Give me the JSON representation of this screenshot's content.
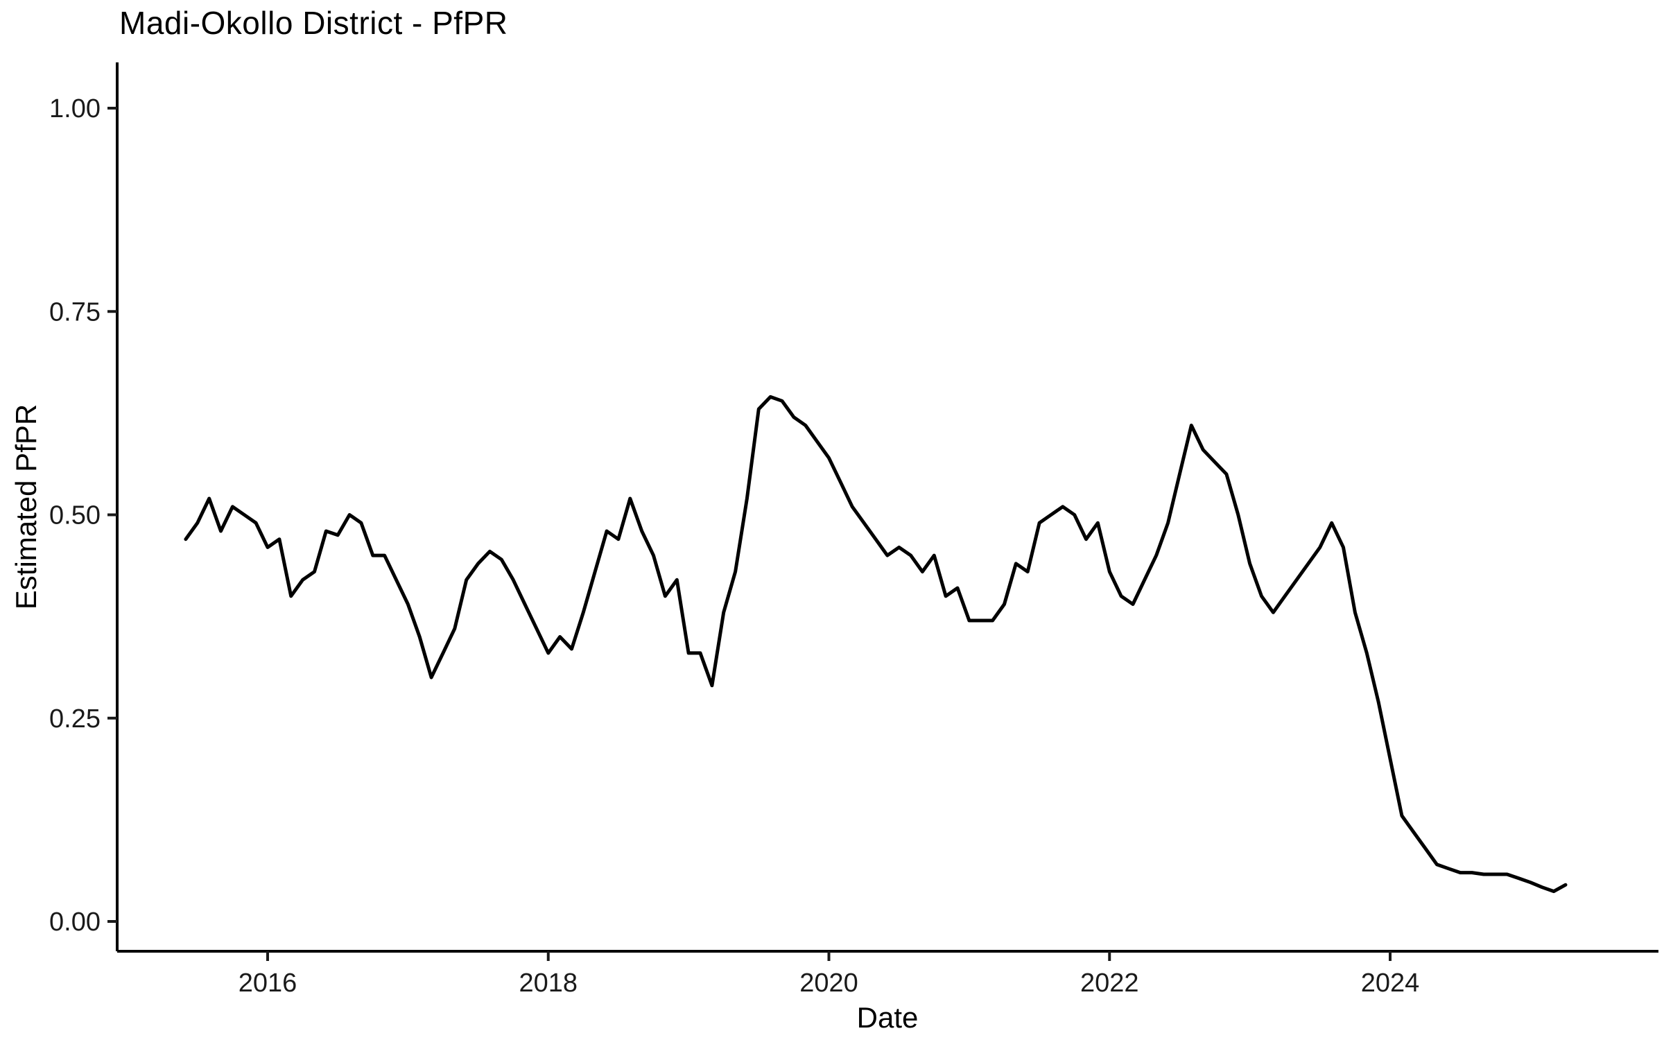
{
  "page": {
    "background": "#FFFFFF"
  },
  "chart_data": {
    "type": "line",
    "title": "Madi-Okollo District - PfPR",
    "xlabel": "Date",
    "ylabel": "Estimated PfPR",
    "series_name": "Estimated PfPR",
    "line_color": "#000000",
    "background": "#FFFFFF",
    "grid": false,
    "legend": "none",
    "x_tick_labels": [
      "2016",
      "2018",
      "2020",
      "2022",
      "2024"
    ],
    "x_tick_years": [
      2016,
      2018,
      2020,
      2022,
      2024
    ],
    "y_tick_labels": [
      "0.00",
      "0.25",
      "0.50",
      "0.75",
      "1.00"
    ],
    "y_tick_values": [
      0.0,
      0.25,
      0.5,
      0.75,
      1.0
    ],
    "y_range": [
      -0.04,
      1.06
    ],
    "x_range_years": [
      2014.93,
      2025.92
    ],
    "frequency": "monthly",
    "start_date": "2015-06",
    "end_date": "2025-04",
    "dates": [
      "2015-06",
      "2015-07",
      "2015-08",
      "2015-09",
      "2015-10",
      "2015-11",
      "2015-12",
      "2016-01",
      "2016-02",
      "2016-03",
      "2016-04",
      "2016-05",
      "2016-06",
      "2016-07",
      "2016-08",
      "2016-09",
      "2016-10",
      "2016-11",
      "2016-12",
      "2017-01",
      "2017-02",
      "2017-03",
      "2017-04",
      "2017-05",
      "2017-06",
      "2017-07",
      "2017-08",
      "2017-09",
      "2017-10",
      "2017-11",
      "2017-12",
      "2018-01",
      "2018-02",
      "2018-03",
      "2018-04",
      "2018-05",
      "2018-06",
      "2018-07",
      "2018-08",
      "2018-09",
      "2018-10",
      "2018-11",
      "2018-12",
      "2019-01",
      "2019-02",
      "2019-03",
      "2019-04",
      "2019-05",
      "2019-06",
      "2019-07",
      "2019-08",
      "2019-09",
      "2019-10",
      "2019-11",
      "2019-12",
      "2020-01",
      "2020-02",
      "2020-03",
      "2020-04",
      "2020-05",
      "2020-06",
      "2020-07",
      "2020-08",
      "2020-09",
      "2020-10",
      "2020-11",
      "2020-12",
      "2021-01",
      "2021-02",
      "2021-03",
      "2021-04",
      "2021-05",
      "2021-06",
      "2021-07",
      "2021-08",
      "2021-09",
      "2021-10",
      "2021-11",
      "2021-12",
      "2022-01",
      "2022-02",
      "2022-03",
      "2022-04",
      "2022-05",
      "2022-06",
      "2022-07",
      "2022-08",
      "2022-09",
      "2022-10",
      "2022-11",
      "2022-12",
      "2023-01",
      "2023-02",
      "2023-03",
      "2023-04",
      "2023-05",
      "2023-06",
      "2023-07",
      "2023-08",
      "2023-09",
      "2023-10",
      "2023-11",
      "2023-12",
      "2024-01",
      "2024-02",
      "2024-03",
      "2024-04",
      "2024-05",
      "2024-06",
      "2024-07",
      "2024-08",
      "2024-09",
      "2024-10",
      "2024-11",
      "2024-12",
      "2025-01",
      "2025-02",
      "2025-03",
      "2025-04"
    ],
    "values": [
      0.47,
      0.49,
      0.52,
      0.48,
      0.51,
      0.5,
      0.49,
      0.46,
      0.47,
      0.4,
      0.42,
      0.43,
      0.48,
      0.475,
      0.5,
      0.49,
      0.45,
      0.45,
      0.42,
      0.39,
      0.35,
      0.3,
      0.33,
      0.36,
      0.42,
      0.44,
      0.455,
      0.445,
      0.42,
      0.39,
      0.36,
      0.33,
      0.35,
      0.335,
      0.38,
      0.43,
      0.48,
      0.47,
      0.52,
      0.48,
      0.45,
      0.4,
      0.42,
      0.33,
      0.33,
      0.29,
      0.38,
      0.43,
      0.52,
      0.63,
      0.645,
      0.64,
      0.62,
      0.61,
      0.59,
      0.57,
      0.54,
      0.51,
      0.49,
      0.47,
      0.45,
      0.46,
      0.45,
      0.43,
      0.45,
      0.4,
      0.41,
      0.37,
      0.37,
      0.37,
      0.39,
      0.44,
      0.43,
      0.49,
      0.5,
      0.51,
      0.5,
      0.47,
      0.49,
      0.43,
      0.4,
      0.39,
      0.42,
      0.45,
      0.49,
      0.55,
      0.61,
      0.58,
      0.565,
      0.55,
      0.5,
      0.44,
      0.4,
      0.38,
      0.4,
      0.42,
      0.44,
      0.46,
      0.49,
      0.46,
      0.38,
      0.33,
      0.27,
      0.2,
      0.13,
      0.11,
      0.09,
      0.07,
      0.065,
      0.06,
      0.06,
      0.058,
      0.058,
      0.058,
      0.053,
      0.048,
      0.042,
      0.037,
      0.045
    ]
  }
}
